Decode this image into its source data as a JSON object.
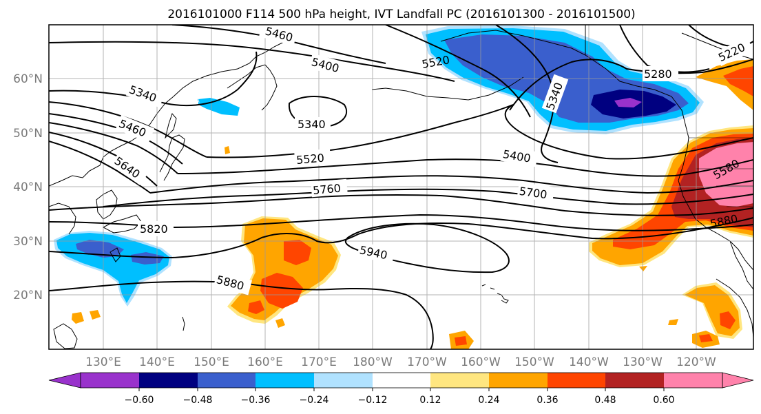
{
  "map": {
    "title": "2016101000 F114 500 hPa height, IVT Landfall PC (2016101300 - 2016101500)",
    "lon_labels": [
      "130°E",
      "140°E",
      "150°E",
      "160°E",
      "170°E",
      "180°W",
      "170°W",
      "160°W",
      "150°W",
      "140°W",
      "130°W",
      "120°W"
    ],
    "lat_labels": [
      "60°N",
      "50°N",
      "40°N",
      "30°N",
      "20°N"
    ],
    "contour_labels": [
      "5460",
      "5400",
      "5520",
      "5280",
      "5220",
      "5340",
      "5340",
      "5340",
      "5460",
      "5640",
      "5520",
      "5400",
      "5580",
      "5760",
      "5700",
      "5880",
      "5820",
      "5940",
      "5880"
    ]
  },
  "colorbar": {
    "tick_labels": [
      "−0.60",
      "−0.48",
      "−0.36",
      "−0.24",
      "−0.12",
      "0.12",
      "0.24",
      "0.36",
      "0.48",
      "0.60"
    ],
    "colors": [
      "#9932cc",
      "#000080",
      "#3a5fcd",
      "#00bfff",
      "#b0e2ff",
      "#ffffff",
      "#ffe680",
      "#ffa500",
      "#ff4500",
      "#b22222",
      "#ff82ab"
    ]
  },
  "palette": {
    "purple": "#9932cc",
    "navy": "#000080",
    "blue": "#3a5fcd",
    "sky": "#00bfff",
    "lightblue": "#b0e2ff",
    "yellow": "#ffe680",
    "orange": "#ffa500",
    "redorange": "#ff4500",
    "firebrick": "#b22222",
    "pink": "#ff82ab"
  }
}
